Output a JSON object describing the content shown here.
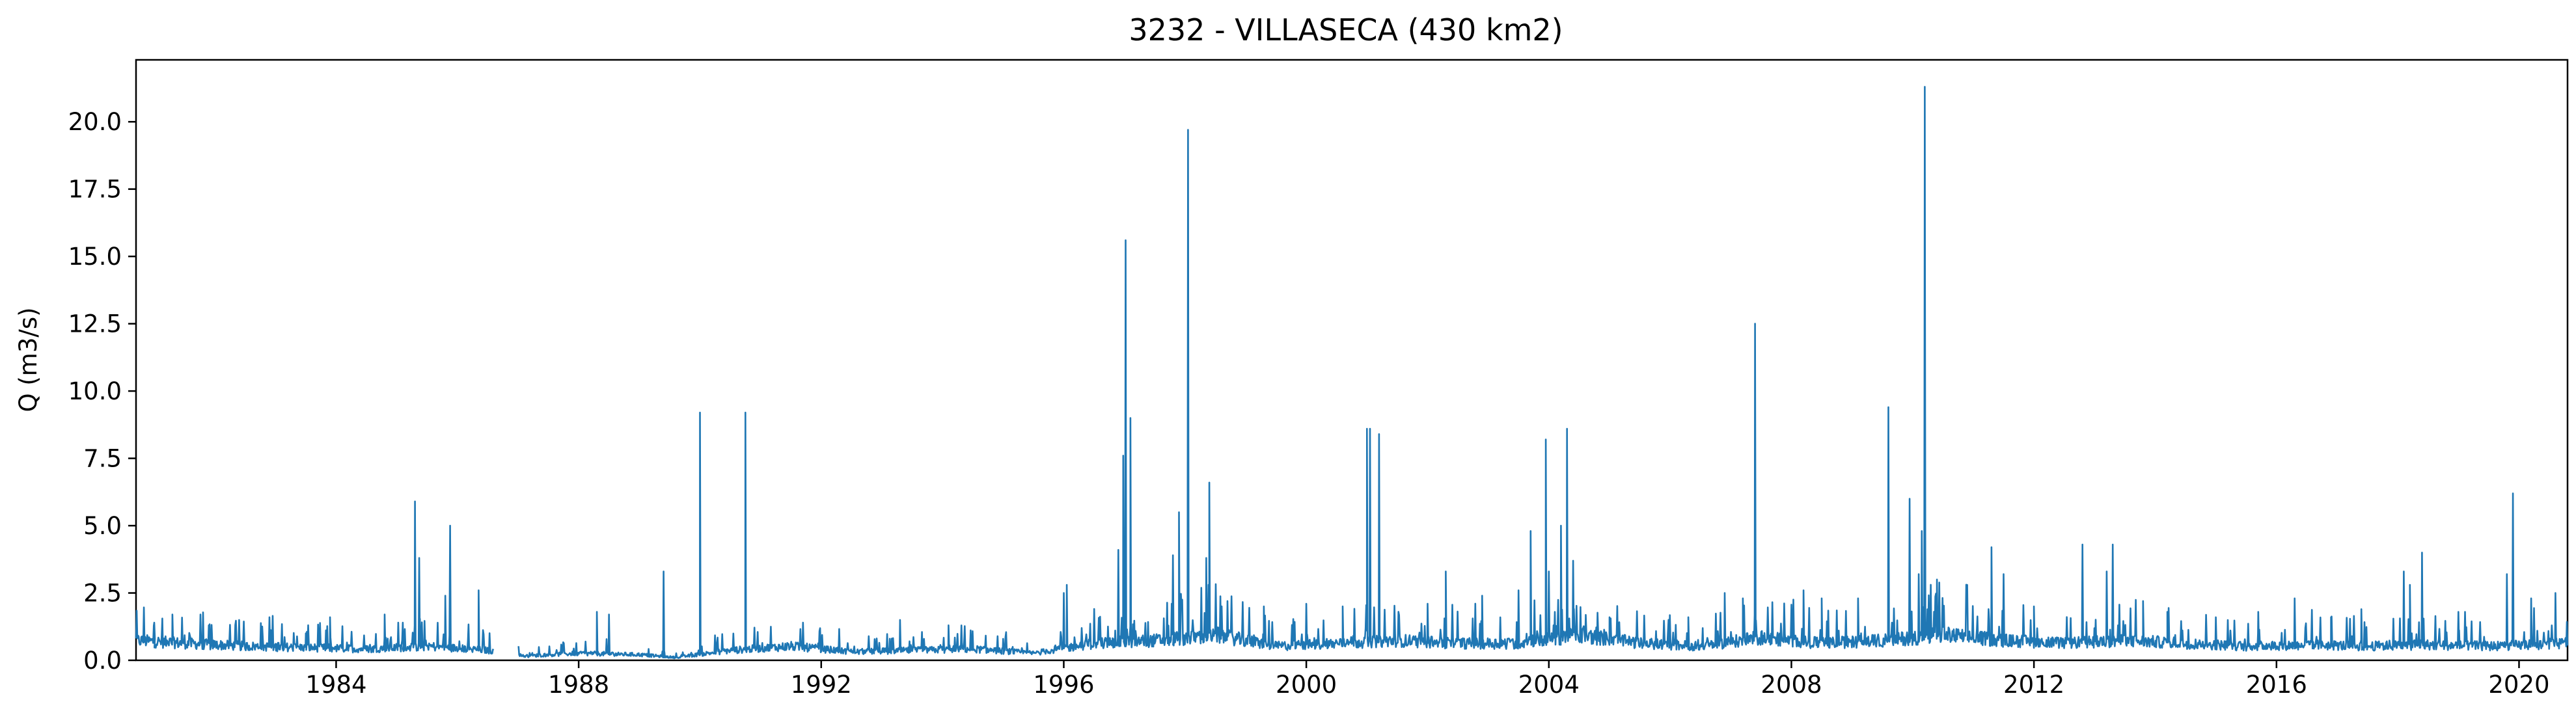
{
  "chart_data": {
    "type": "line",
    "title": "3232 - VILLASECA (430 km2)",
    "xlabel": "",
    "ylabel": "Q (m3/s)",
    "xlim": [
      1980.7,
      2020.8
    ],
    "ylim": [
      0,
      22.3
    ],
    "x_ticks": [
      1984,
      1988,
      1992,
      1996,
      2000,
      2004,
      2008,
      2012,
      2016,
      2020
    ],
    "y_ticks": [
      0.0,
      2.5,
      5.0,
      7.5,
      10.0,
      12.5,
      15.0,
      17.5,
      20.0
    ],
    "grid": false,
    "series": [
      {
        "color": "#1f77b4",
        "gap": [
          1986.6,
          1987.0
        ],
        "base": [
          [
            1980.7,
            0.7
          ],
          [
            1981.5,
            0.6
          ],
          [
            1982.5,
            0.5
          ],
          [
            1983.5,
            0.45
          ],
          [
            1984.5,
            0.4
          ],
          [
            1985.5,
            0.5
          ],
          [
            1986.5,
            0.35
          ],
          [
            1987.1,
            0.15
          ],
          [
            1988.0,
            0.25
          ],
          [
            1989.0,
            0.2
          ],
          [
            1989.6,
            0.1
          ],
          [
            1990.5,
            0.35
          ],
          [
            1991.5,
            0.5
          ],
          [
            1992.5,
            0.3
          ],
          [
            1993.5,
            0.35
          ],
          [
            1994.5,
            0.4
          ],
          [
            1995.5,
            0.25
          ],
          [
            1996.5,
            0.6
          ],
          [
            1997.5,
            0.7
          ],
          [
            1998.5,
            0.9
          ],
          [
            1999.5,
            0.5
          ],
          [
            2000.5,
            0.6
          ],
          [
            2001.5,
            0.7
          ],
          [
            2002.5,
            0.6
          ],
          [
            2003.5,
            0.6
          ],
          [
            2004.5,
            0.9
          ],
          [
            2005.5,
            0.6
          ],
          [
            2006.5,
            0.5
          ],
          [
            2007.5,
            0.8
          ],
          [
            2008.5,
            0.6
          ],
          [
            2009.5,
            0.7
          ],
          [
            2010.5,
            0.9
          ],
          [
            2011.5,
            0.7
          ],
          [
            2012.5,
            0.6
          ],
          [
            2013.5,
            0.7
          ],
          [
            2014.5,
            0.6
          ],
          [
            2015.5,
            0.5
          ],
          [
            2016.5,
            0.55
          ],
          [
            2017.5,
            0.5
          ],
          [
            2018.5,
            0.55
          ],
          [
            2019.5,
            0.5
          ],
          [
            2020.8,
            0.6
          ]
        ],
        "peaks": [
          [
            1981.0,
            1.4
          ],
          [
            1981.3,
            1.7
          ],
          [
            1981.9,
            1.3
          ],
          [
            1982.4,
            1.5
          ],
          [
            1982.9,
            1.6
          ],
          [
            1983.5,
            1.0
          ],
          [
            1983.9,
            1.6
          ],
          [
            1984.8,
            1.7
          ],
          [
            1985.1,
            1.4
          ],
          [
            1985.3,
            5.9
          ],
          [
            1985.37,
            3.8
          ],
          [
            1985.8,
            2.4
          ],
          [
            1985.88,
            5.0
          ],
          [
            1986.35,
            2.6
          ],
          [
            1988.3,
            1.8
          ],
          [
            1988.5,
            1.7
          ],
          [
            1989.4,
            3.3
          ],
          [
            1990.0,
            9.2
          ],
          [
            1990.75,
            9.2
          ],
          [
            1991.7,
            1.4
          ],
          [
            1993.3,
            1.5
          ],
          [
            1994.1,
            1.3
          ],
          [
            1995.0,
            0.8
          ],
          [
            1996.0,
            2.5
          ],
          [
            1996.05,
            2.8
          ],
          [
            1996.9,
            4.1
          ],
          [
            1996.98,
            7.6
          ],
          [
            1997.02,
            15.6
          ],
          [
            1997.1,
            9.0
          ],
          [
            1997.8,
            3.9
          ],
          [
            1997.9,
            5.5
          ],
          [
            1998.05,
            19.7
          ],
          [
            1998.35,
            3.8
          ],
          [
            1998.4,
            6.6
          ],
          [
            1998.7,
            2.2
          ],
          [
            1999.3,
            2.0
          ],
          [
            2000.0,
            2.1
          ],
          [
            2000.6,
            2.0
          ],
          [
            2001.0,
            8.6
          ],
          [
            2001.05,
            8.6
          ],
          [
            2001.2,
            8.4
          ],
          [
            2002.0,
            2.1
          ],
          [
            2002.3,
            3.3
          ],
          [
            2002.9,
            2.4
          ],
          [
            2003.5,
            2.6
          ],
          [
            2003.7,
            4.8
          ],
          [
            2003.95,
            8.2
          ],
          [
            2004.0,
            3.3
          ],
          [
            2004.2,
            5.0
          ],
          [
            2004.3,
            8.6
          ],
          [
            2004.4,
            3.7
          ],
          [
            2005.0,
            1.6
          ],
          [
            2005.9,
            1.4
          ],
          [
            2006.3,
            1.6
          ],
          [
            2006.9,
            2.5
          ],
          [
            2007.2,
            2.3
          ],
          [
            2007.4,
            12.5
          ],
          [
            2008.2,
            2.6
          ],
          [
            2008.5,
            2.3
          ],
          [
            2009.1,
            2.3
          ],
          [
            2009.6,
            9.4
          ],
          [
            2009.95,
            6.0
          ],
          [
            2010.1,
            3.2
          ],
          [
            2010.15,
            4.8
          ],
          [
            2010.2,
            21.3
          ],
          [
            2010.4,
            3.0
          ],
          [
            2010.9,
            2.8
          ],
          [
            2011.3,
            4.2
          ],
          [
            2011.5,
            3.2
          ],
          [
            2012.0,
            2.0
          ],
          [
            2012.8,
            4.3
          ],
          [
            2013.2,
            3.3
          ],
          [
            2013.3,
            4.3
          ],
          [
            2013.8,
            2.2
          ],
          [
            2014.2,
            1.8
          ],
          [
            2015.0,
            1.6
          ],
          [
            2015.7,
            1.8
          ],
          [
            2016.3,
            2.3
          ],
          [
            2016.9,
            1.6
          ],
          [
            2017.4,
            1.9
          ],
          [
            2018.1,
            3.3
          ],
          [
            2018.2,
            2.8
          ],
          [
            2018.4,
            4.0
          ],
          [
            2019.0,
            1.8
          ],
          [
            2019.8,
            3.2
          ],
          [
            2019.9,
            6.2
          ],
          [
            2020.2,
            2.3
          ],
          [
            2020.6,
            2.5
          ]
        ]
      }
    ]
  }
}
